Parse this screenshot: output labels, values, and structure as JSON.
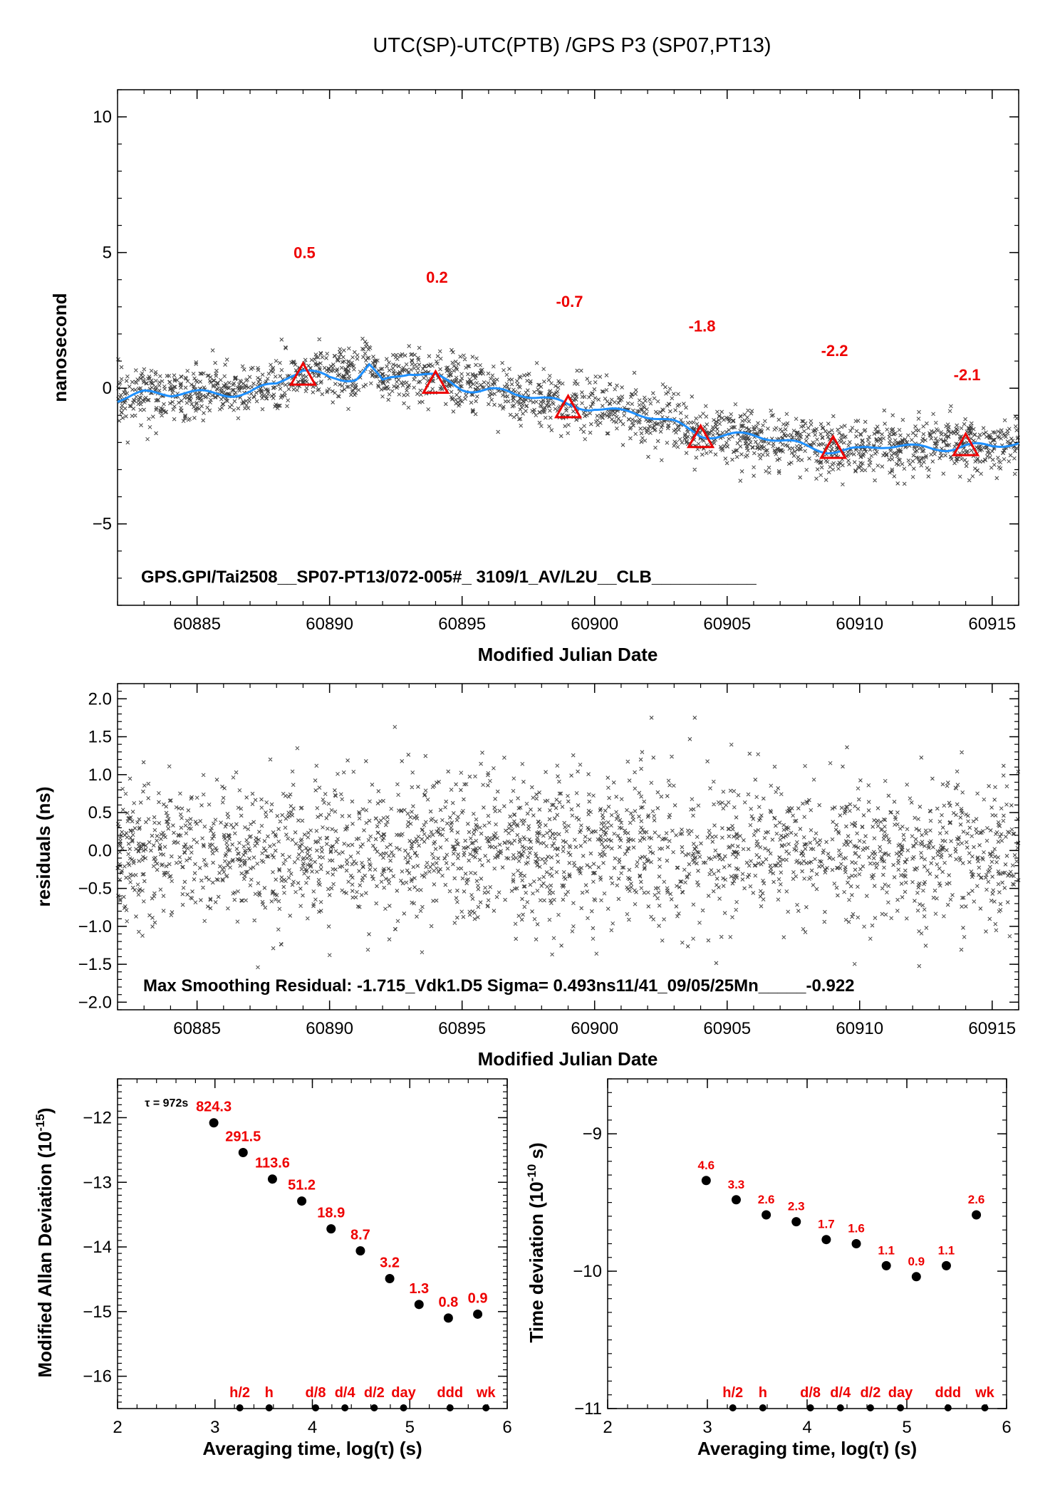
{
  "title": "UTC(SP)-UTC(PTB)  /GPS  P3  (SP07,PT13)",
  "colors": {
    "series": "#1e90ff",
    "marker": "#ee0000",
    "label": "#ee0000",
    "points": "#000000"
  },
  "chart_data": [
    {
      "type": "scatter",
      "name_panel": "top",
      "xlabel": "Modified Julian Date",
      "ylabel": "nanosecond",
      "xlim": [
        60882,
        60916
      ],
      "ylim": [
        -8,
        11
      ],
      "xticks": [
        60885,
        60890,
        60895,
        60900,
        60905,
        60910,
        60915
      ],
      "yticks": [
        -5,
        0,
        5,
        10
      ],
      "ytick_labels": [
        "−5",
        "0",
        "5",
        "10"
      ],
      "annotation": "GPS.GPI/Tai2508__SP07-PT13/072-005#_  3109/1_AV/L2U__CLB___________",
      "trend": {
        "x": [
          60882,
          60883,
          60884,
          60885,
          60886,
          60887,
          60888,
          60888.5,
          60889,
          60890,
          60891,
          60891.5,
          60892,
          60893,
          60894,
          60895,
          60896,
          60897,
          60898,
          60899,
          60900,
          60901,
          60902,
          60903,
          60904,
          60905,
          60906,
          60907,
          60908,
          60909,
          60910,
          60911,
          60912,
          60913,
          60914,
          60915,
          60916
        ],
        "y": [
          -0.3,
          -0.2,
          -0.3,
          -0.2,
          -0.1,
          -0.1,
          0.1,
          0.4,
          0.6,
          0.4,
          0.5,
          0.9,
          0.2,
          0.5,
          0.4,
          0.1,
          0.0,
          -0.3,
          -0.4,
          -0.6,
          -0.6,
          -0.9,
          -1.1,
          -1.3,
          -1.6,
          -1.7,
          -1.8,
          -2.0,
          -2.1,
          -2.2,
          -2.3,
          -2.2,
          -2.2,
          -2.1,
          -2.1,
          -2.2,
          -2.1
        ]
      },
      "scatter_sigma": 0.5,
      "markers": [
        {
          "x": 60889,
          "y": 0.5,
          "label": "0.5"
        },
        {
          "x": 60894,
          "y": 0.2,
          "label": "0.2"
        },
        {
          "x": 60899,
          "y": -0.7,
          "label": "-0.7"
        },
        {
          "x": 60904,
          "y": -1.8,
          "label": "-1.8"
        },
        {
          "x": 60909,
          "y": -2.2,
          "label": "-2.2"
        },
        {
          "x": 60914,
          "y": -2.1,
          "label": "-2.1"
        }
      ]
    },
    {
      "type": "scatter",
      "name_panel": "residuals",
      "xlabel": "Modified Julian Date",
      "ylabel": "residuals (ns)",
      "xlim": [
        60882,
        60916
      ],
      "ylim": [
        -2.1,
        2.2
      ],
      "xticks": [
        60885,
        60890,
        60895,
        60900,
        60905,
        60910,
        60915
      ],
      "yticks": [
        -2.0,
        -1.5,
        -1.0,
        -0.5,
        0.0,
        0.5,
        1.0,
        1.5,
        2.0
      ],
      "ytick_labels": [
        "−2.0",
        "−1.5",
        "−1.0",
        "−0.5",
        "0.0",
        "0.5",
        "1.0",
        "1.5",
        "2.0"
      ],
      "scatter_sigma": 0.493,
      "annotation": "Max Smoothing Residual: -1.715_Vdk1.D5  Sigma= 0.493ns11/41_09/05/25Mn_____-0.922"
    },
    {
      "type": "scatter",
      "name_panel": "mdev",
      "xlabel": "Averaging time, log(τ) (s)",
      "ylabel_main": "Modified Allan Deviation (10",
      "ylabel_sup": "-15",
      "ylabel_end": ")",
      "xlim": [
        2,
        6
      ],
      "ylim": [
        -16.5,
        -11.4
      ],
      "xticks": [
        2,
        3,
        4,
        5,
        6
      ],
      "yticks": [
        -16,
        -15,
        -14,
        -13,
        -12
      ],
      "ytick_labels": [
        "−16",
        "−15",
        "−14",
        "−13",
        "−12"
      ],
      "tau_note": "τ = 972s",
      "points": [
        {
          "x": 2.988,
          "y": -12.08,
          "label": "824.3"
        },
        {
          "x": 3.289,
          "y": -12.54,
          "label": "291.5"
        },
        {
          "x": 3.59,
          "y": -12.95,
          "label": "113.6"
        },
        {
          "x": 3.891,
          "y": -13.29,
          "label": "51.2"
        },
        {
          "x": 4.192,
          "y": -13.72,
          "label": "18.9"
        },
        {
          "x": 4.493,
          "y": -14.06,
          "label": "8.7"
        },
        {
          "x": 4.794,
          "y": -14.49,
          "label": "3.2"
        },
        {
          "x": 5.095,
          "y": -14.89,
          "label": "1.3"
        },
        {
          "x": 5.396,
          "y": -15.1,
          "label": "0.8"
        },
        {
          "x": 5.697,
          "y": -15.04,
          "label": "0.9"
        }
      ],
      "marks": [
        {
          "x": 3.255,
          "label": "h/2"
        },
        {
          "x": 3.556,
          "label": "h"
        },
        {
          "x": 4.033,
          "label": "d/8"
        },
        {
          "x": 4.334,
          "label": "d/4"
        },
        {
          "x": 4.635,
          "label": "d/2"
        },
        {
          "x": 4.936,
          "label": "day"
        },
        {
          "x": 5.413,
          "label": "ddd"
        },
        {
          "x": 5.782,
          "label": "wk"
        }
      ]
    },
    {
      "type": "scatter",
      "name_panel": "tdev",
      "xlabel": "Averaging time, log(τ) (s)",
      "ylabel_main": "Time deviation (10",
      "ylabel_sup": "-10",
      "ylabel_end": " s)",
      "xlim": [
        2,
        6
      ],
      "ylim": [
        -11,
        -8.6
      ],
      "xticks": [
        2,
        3,
        4,
        5,
        6
      ],
      "yticks": [
        -11,
        -10,
        -9
      ],
      "ytick_labels": [
        "−11",
        "−10",
        "−9"
      ],
      "points": [
        {
          "x": 2.988,
          "y": -9.34,
          "label": "4.6"
        },
        {
          "x": 3.289,
          "y": -9.48,
          "label": "3.3"
        },
        {
          "x": 3.59,
          "y": -9.59,
          "label": "2.6"
        },
        {
          "x": 3.891,
          "y": -9.64,
          "label": "2.3"
        },
        {
          "x": 4.192,
          "y": -9.77,
          "label": "1.7"
        },
        {
          "x": 4.493,
          "y": -9.8,
          "label": "1.6"
        },
        {
          "x": 4.794,
          "y": -9.96,
          "label": "1.1"
        },
        {
          "x": 5.095,
          "y": -10.04,
          "label": "0.9"
        },
        {
          "x": 5.396,
          "y": -9.96,
          "label": "1.1"
        },
        {
          "x": 5.697,
          "y": -9.59,
          "label": "2.6"
        }
      ],
      "marks": [
        {
          "x": 3.255,
          "label": "h/2"
        },
        {
          "x": 3.556,
          "label": "h"
        },
        {
          "x": 4.033,
          "label": "d/8"
        },
        {
          "x": 4.334,
          "label": "d/4"
        },
        {
          "x": 4.635,
          "label": "d/2"
        },
        {
          "x": 4.936,
          "label": "day"
        },
        {
          "x": 5.413,
          "label": "ddd"
        },
        {
          "x": 5.782,
          "label": "wk"
        }
      ]
    }
  ]
}
